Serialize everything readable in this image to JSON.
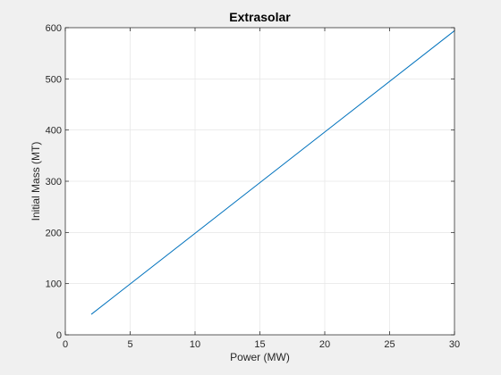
{
  "chart_data": {
    "type": "line",
    "title": "Extrasolar",
    "xlabel": "Power (MW)",
    "ylabel": "Initial Mass (MT)",
    "xlim": [
      0,
      30
    ],
    "ylim": [
      0,
      600
    ],
    "xticks": [
      0,
      5,
      10,
      15,
      20,
      25,
      30
    ],
    "yticks": [
      0,
      100,
      200,
      300,
      400,
      500,
      600
    ],
    "grid": true,
    "series": [
      {
        "color": "#0072bd",
        "x": [
          2,
          30
        ],
        "y": [
          40,
          594
        ]
      }
    ]
  },
  "colors": {
    "figure_background": "#f0f0f0",
    "axes_background": "#ffffff",
    "axis_line": "#262626",
    "grid": "#e6e6e6",
    "series": "#0072bd"
  }
}
